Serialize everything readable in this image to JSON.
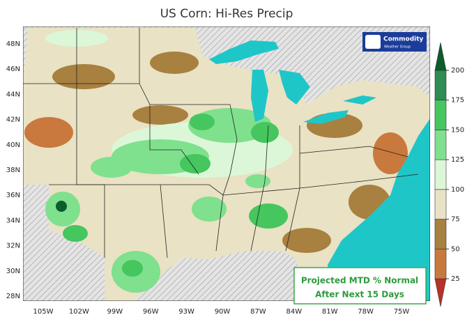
{
  "title": "US Corn: Hi-Res Precip",
  "latitude_labels": [
    "48N",
    "46N",
    "44N",
    "42N",
    "40N",
    "38N",
    "36N",
    "34N",
    "32N",
    "30N",
    "28N"
  ],
  "longitude_labels": [
    "105W",
    "102W",
    "99W",
    "96W",
    "93W",
    "90W",
    "87W",
    "84W",
    "81W",
    "78W",
    "75W"
  ],
  "logo": {
    "name": "Commodity",
    "subtitle": "Weather Group"
  },
  "note": [
    "Projected MTD % Normal",
    "After Next 15 Days"
  ],
  "colorbar": {
    "ticks": [
      25,
      50,
      75,
      100,
      125,
      150,
      175,
      200
    ],
    "colors": [
      "#b8312a",
      "#c9793e",
      "#a8803f",
      "#e9e2c4",
      "#dbf7d8",
      "#7fe08e",
      "#45c65e",
      "#2f8c52",
      "#0c5c2c"
    ]
  }
}
